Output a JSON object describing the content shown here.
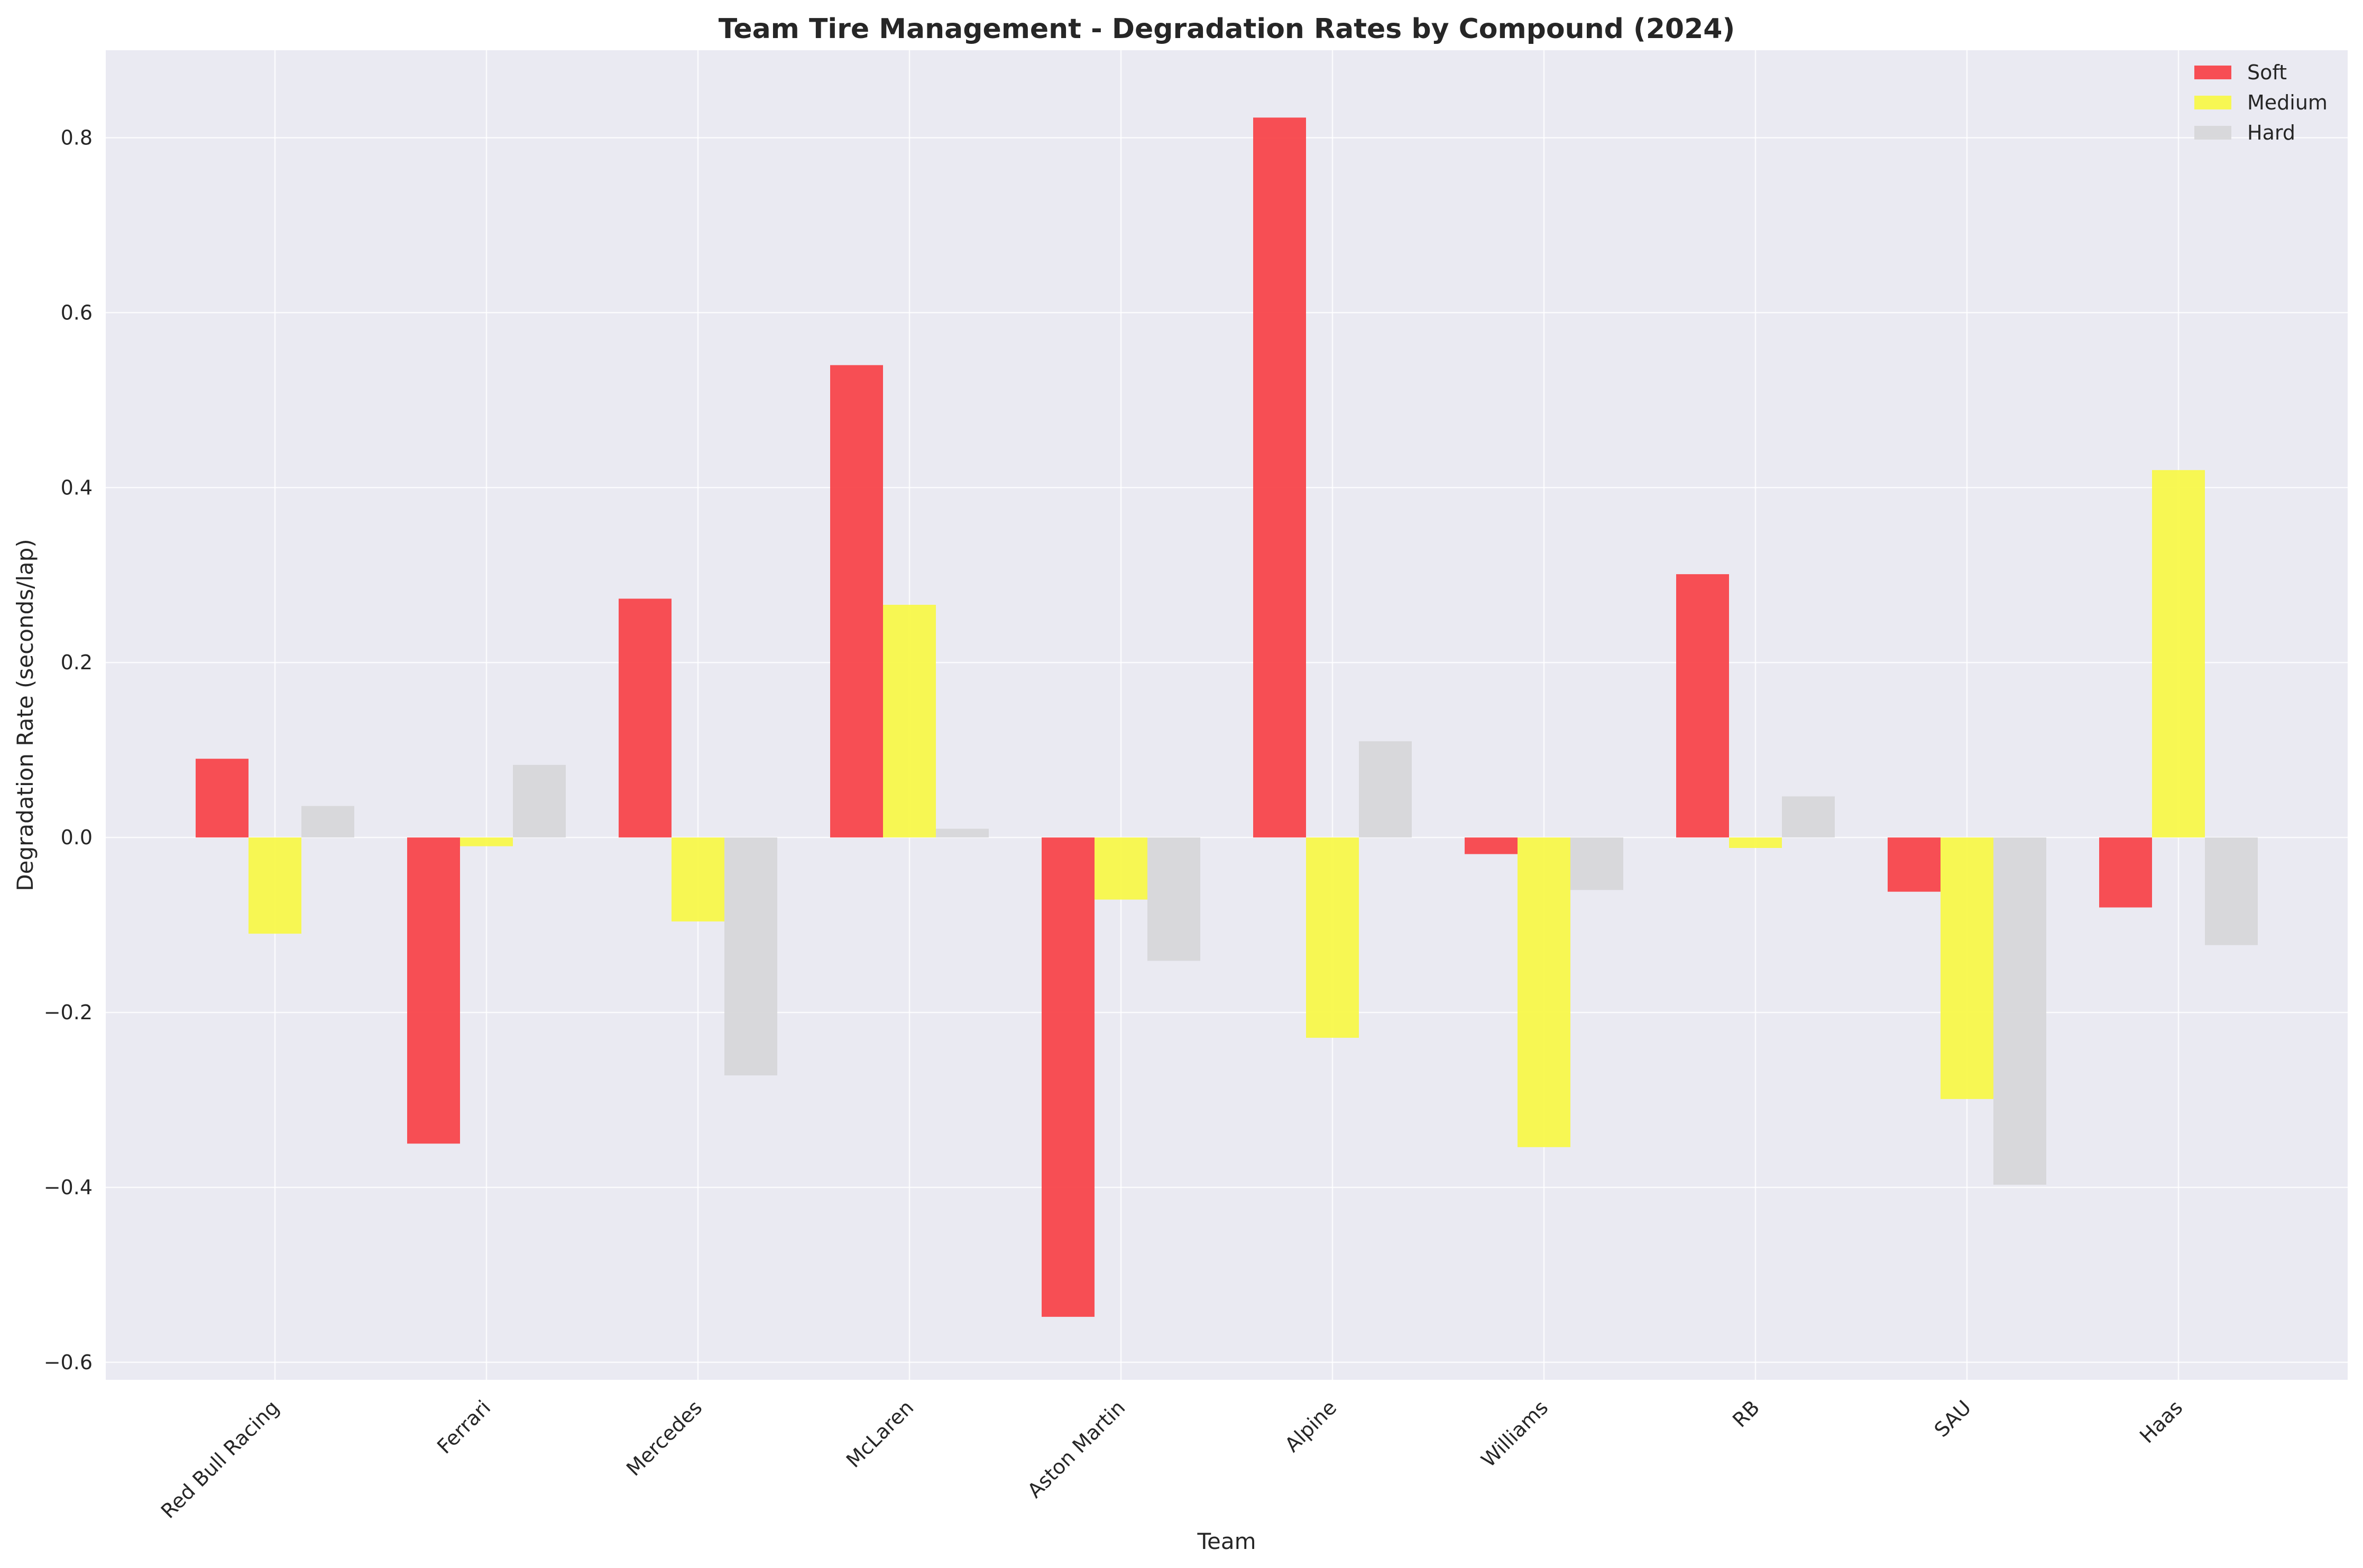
{
  "chart_data": {
    "type": "bar",
    "title": "Team Tire Management - Degradation Rates by Compound (2024)",
    "xlabel": "Team",
    "ylabel": "Degradation Rate (seconds/lap)",
    "categories": [
      "Red Bull Racing",
      "Ferrari",
      "Mercedes",
      "McLaren",
      "Aston Martin",
      "Alpine",
      "Williams",
      "RB",
      "SAU",
      "Haas"
    ],
    "series": [
      {
        "name": "Soft",
        "color": "#f8464b",
        "values": [
          0.09,
          -0.35,
          0.273,
          0.54,
          -0.548,
          0.823,
          -0.019,
          0.301,
          -0.062,
          -0.08
        ]
      },
      {
        "name": "Medium",
        "color": "#f8f84a",
        "values": [
          -0.11,
          -0.01,
          -0.096,
          0.266,
          -0.071,
          -0.229,
          -0.354,
          -0.012,
          -0.299,
          0.42
        ]
      },
      {
        "name": "Hard",
        "color": "#d7d7d9",
        "values": [
          0.036,
          0.083,
          -0.272,
          0.01,
          -0.141,
          0.11,
          -0.06,
          0.047,
          -0.397,
          -0.123
        ]
      }
    ],
    "ylim": [
      -0.62,
      0.9
    ],
    "yticks": [
      -0.6,
      -0.4,
      -0.2,
      0.0,
      0.2,
      0.4,
      0.6,
      0.8
    ],
    "ytick_labels": [
      "−0.6",
      "−0.4",
      "−0.2",
      "0.0",
      "0.2",
      "0.4",
      "0.6",
      "0.8"
    ],
    "grid": true,
    "legend_position": "top-right",
    "plot_background": "#eaeaf2",
    "grid_color": "#ffffff"
  }
}
